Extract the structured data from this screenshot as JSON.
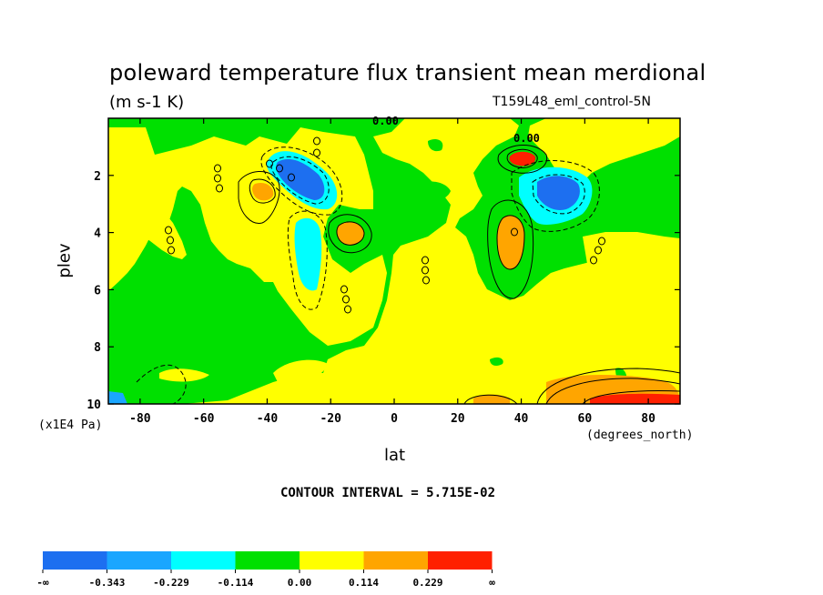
{
  "chart_data": {
    "type": "heatmap",
    "title": "poleward temperature flux transient mean merdional",
    "units": "(m s-1 K)",
    "experiment": "T159L48_eml_control-5N",
    "xlabel": "lat",
    "x_units": "(degrees_north)",
    "ylabel": "plev",
    "y_scale_note": "(x1E4 Pa)",
    "xlim": [
      -90,
      90
    ],
    "ylim": [
      0,
      10
    ],
    "y_reversed": true,
    "x_ticks": [
      -80,
      -60,
      -40,
      -20,
      0,
      20,
      40,
      60,
      80
    ],
    "x_tick_labels": [
      "-80",
      "-60",
      "-40",
      "-20",
      "0",
      "20",
      "40",
      "60",
      "80"
    ],
    "y_ticks": [
      2,
      4,
      6,
      8,
      10
    ],
    "y_tick_labels": [
      "2",
      "4",
      "6",
      "8",
      "10"
    ],
    "contour_interval_text": "CONTOUR INTERVAL = 5.715E-02",
    "contour_labels": [
      "0.00",
      "0.00"
    ],
    "colorbar": {
      "boundaries": [
        "-∞",
        "-0.343",
        "-0.229",
        "-0.114",
        "0.00",
        "0.114",
        "0.229",
        "∞"
      ],
      "colors": [
        "#1d6ff0",
        "#1aa6ff",
        "#00ffff",
        "#00e000",
        "#ffff00",
        "#ffa500",
        "#ff2000"
      ]
    },
    "features": [
      {
        "name": "green-background",
        "level": -0.05,
        "color": "#00e000"
      },
      {
        "name": "yellow-positive",
        "level": 0.05,
        "color": "#ffff00"
      },
      {
        "name": "neg-max-lat-30",
        "lat": -30,
        "plev": 2.0,
        "level": -0.38,
        "color": "#1d6ff0"
      },
      {
        "name": "neg-cyan-lat-28",
        "lat": -27,
        "plev": 4.5,
        "level": -0.17,
        "color": "#00ffff"
      },
      {
        "name": "neg-max-lat-48",
        "lat": 48,
        "plev": 2.5,
        "level": -0.36,
        "color": "#1d6ff0"
      },
      {
        "name": "pos-orange-lat-42",
        "lat": -41,
        "plev": 2.6,
        "level": 0.15,
        "color": "#ffa500"
      },
      {
        "name": "pos-orange-lat-14",
        "lat": -14,
        "plev": 4.0,
        "level": 0.15,
        "color": "#ffa500"
      },
      {
        "name": "pos-orange-lat-37",
        "lat": 37,
        "plev": 4.2,
        "level": 0.17,
        "color": "#ffa500"
      },
      {
        "name": "pos-red-lat-40",
        "lat": 40,
        "plev": 1.4,
        "level": 0.3,
        "color": "#ff2000"
      },
      {
        "name": "pos-red-surface-80",
        "lat": 79,
        "plev": 9.9,
        "level": 0.3,
        "color": "#ff2000"
      }
    ]
  }
}
